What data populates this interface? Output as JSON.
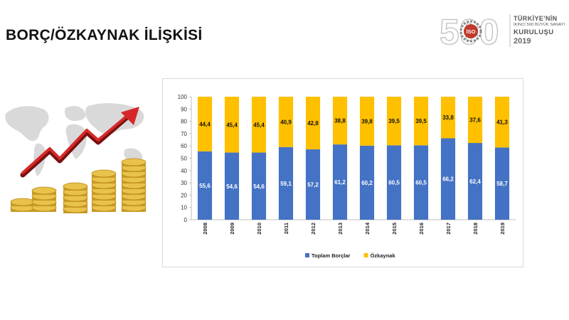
{
  "page": {
    "title": "BORÇ/ÖZKAYNAK İLİŞKİSİ"
  },
  "logo": {
    "numeral": "500",
    "badge": "İSO",
    "line1": "TÜRKİYE'NİN",
    "line2": "İKİNCİ 500 BÜYÜK SANAYİ",
    "line3": "KURULUŞU",
    "year": "2019"
  },
  "colors": {
    "debt": "#4472C4",
    "equity": "#FFC000",
    "arrow": "#D62828",
    "coin": "#E8C24A"
  },
  "chart_data": {
    "type": "bar",
    "stacked": true,
    "categories": [
      "2008",
      "2009",
      "2010",
      "2011",
      "2012",
      "2013",
      "2014",
      "2015",
      "2016",
      "2017",
      "2018",
      "2019"
    ],
    "series": [
      {
        "name": "Toplam Borçlar",
        "values": [
          55.6,
          54.6,
          54.6,
          59.1,
          57.2,
          61.2,
          60.2,
          60.5,
          60.5,
          66.2,
          62.4,
          58.7
        ],
        "labels": [
          "55,6",
          "54,6",
          "54,6",
          "59,1",
          "57,2",
          "61,2",
          "60,2",
          "60,5",
          "60,5",
          "66,2",
          "62,4",
          "58,7"
        ]
      },
      {
        "name": "Özkaynak",
        "values": [
          44.4,
          45.4,
          45.4,
          40.9,
          42.8,
          38.8,
          39.8,
          39.5,
          39.5,
          33.8,
          37.6,
          41.3
        ],
        "labels": [
          "44,4",
          "45,4",
          "45,4",
          "40,9",
          "42,8",
          "38,8",
          "39,8",
          "39,5",
          "39,5",
          "33,8",
          "37,6",
          "41,3"
        ]
      }
    ],
    "ylim": [
      0,
      100
    ],
    "yticks": [
      "0",
      "10",
      "20",
      "30",
      "40",
      "50",
      "60",
      "70",
      "80",
      "90",
      "100"
    ],
    "xlabel": "",
    "ylabel": "",
    "grid": false,
    "legend_position": "bottom"
  }
}
